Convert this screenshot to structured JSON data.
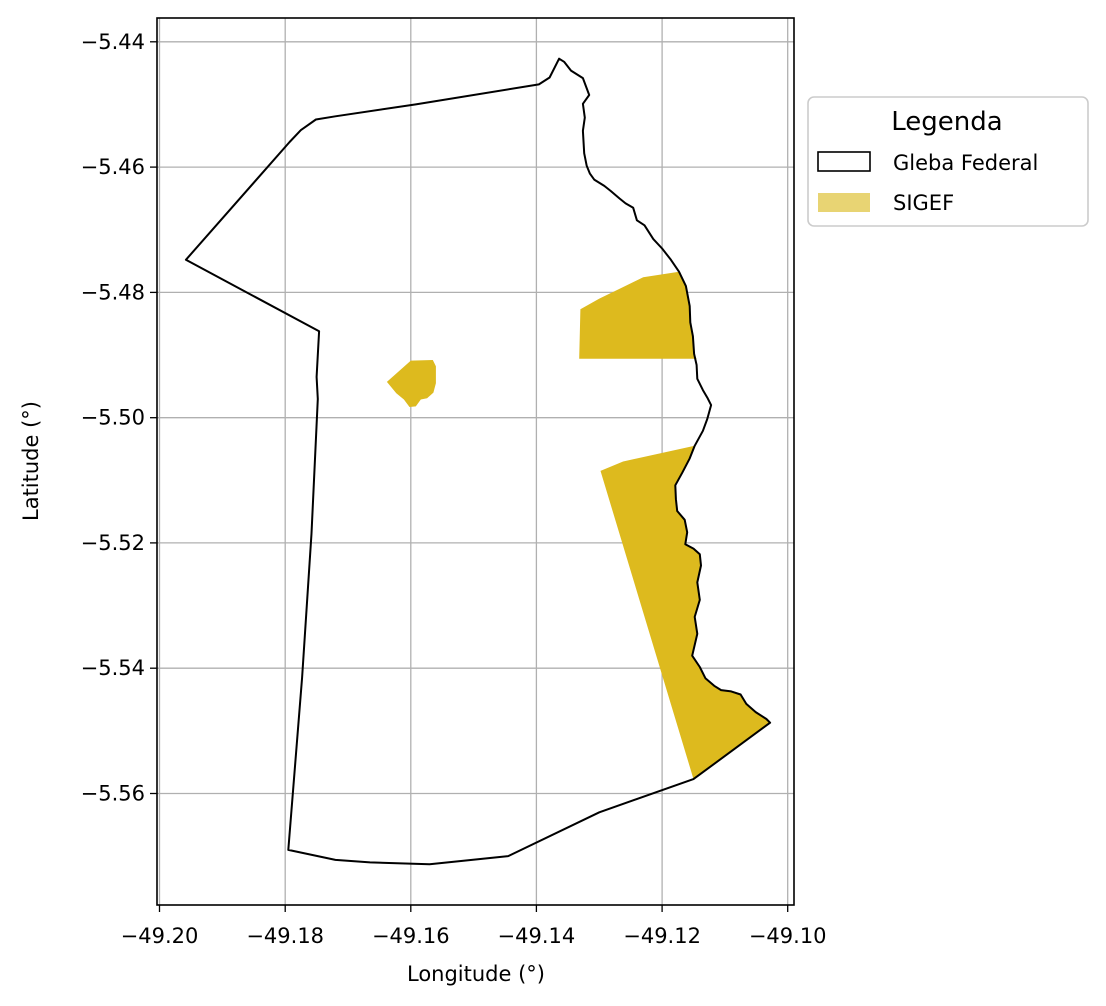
{
  "chart_data": {
    "type": "map",
    "xlabel": "Longitude (°)",
    "ylabel": "Latitude (°)",
    "xlim": [
      -49.2004,
      -49.099
    ],
    "ylim": [
      -5.5778,
      -5.4362
    ],
    "grid": true,
    "x_ticks": [
      -49.2,
      -49.18,
      -49.16,
      -49.14,
      -49.12,
      -49.1
    ],
    "x_tick_labels": [
      "−49.20",
      "−49.18",
      "−49.16",
      "−49.14",
      "−49.12",
      "−49.10"
    ],
    "y_ticks": [
      -5.44,
      -5.46,
      -5.48,
      -5.5,
      -5.52,
      -5.54,
      -5.56
    ],
    "y_tick_labels": [
      "−5.44",
      "−5.46",
      "−5.48",
      "−5.50",
      "−5.52",
      "−5.54",
      "−5.56"
    ],
    "legend": {
      "title": "Legenda",
      "placement": "outside-top-right",
      "entries": [
        {
          "label": "Gleba Federal",
          "style": "outline",
          "color": "#000000"
        },
        {
          "label": "SIGEF",
          "style": "fill",
          "color": "#E8D473"
        }
      ]
    },
    "colors": {
      "gleba_outline": "#000000",
      "sigef_fill": "#DDBA1E",
      "grid": "#B0B0B0"
    },
    "gleba_federal": [
      [
        -49.1958,
        -5.4748
      ],
      [
        -49.1793,
        -5.456
      ],
      [
        -49.1775,
        -5.4541
      ],
      [
        -49.1751,
        -5.4524
      ],
      [
        -49.172,
        -5.4519
      ],
      [
        -49.1592,
        -5.45
      ],
      [
        -49.1396,
        -5.4468
      ],
      [
        -49.1379,
        -5.4457
      ],
      [
        -49.1364,
        -5.4427
      ],
      [
        -49.1356,
        -5.4432
      ],
      [
        -49.1345,
        -5.4446
      ],
      [
        -49.1326,
        -5.4458
      ],
      [
        -49.1316,
        -5.4485
      ],
      [
        -49.1326,
        -5.4499
      ],
      [
        -49.1323,
        -5.4521
      ],
      [
        -49.1326,
        -5.4542
      ],
      [
        -49.1324,
        -5.4578
      ],
      [
        -49.132,
        -5.4598
      ],
      [
        -49.1315,
        -5.461
      ],
      [
        -49.1308,
        -5.462
      ],
      [
        -49.1292,
        -5.463
      ],
      [
        -49.1282,
        -5.4638
      ],
      [
        -49.1268,
        -5.465
      ],
      [
        -49.1258,
        -5.4658
      ],
      [
        -49.1246,
        -5.4665
      ],
      [
        -49.124,
        -5.4685
      ],
      [
        -49.1228,
        -5.4693
      ],
      [
        -49.1214,
        -5.4715
      ],
      [
        -49.12,
        -5.473
      ],
      [
        -49.1186,
        -5.4748
      ],
      [
        -49.1173,
        -5.4767
      ],
      [
        -49.1162,
        -5.479
      ],
      [
        -49.1156,
        -5.4822
      ],
      [
        -49.1155,
        -5.4848
      ],
      [
        -49.1151,
        -5.487
      ],
      [
        -49.1149,
        -5.4898
      ],
      [
        -49.1145,
        -5.4916
      ],
      [
        -49.1144,
        -5.4938
      ],
      [
        -49.1135,
        -5.4956
      ],
      [
        -49.1128,
        -5.4968
      ],
      [
        -49.1122,
        -5.498
      ],
      [
        -49.1128,
        -5.5002
      ],
      [
        -49.1135,
        -5.5021
      ],
      [
        -49.1148,
        -5.5045
      ],
      [
        -49.1156,
        -5.5065
      ],
      [
        -49.1168,
        -5.5088
      ],
      [
        -49.1179,
        -5.5108
      ],
      [
        -49.1178,
        -5.513
      ],
      [
        -49.1176,
        -5.5149
      ],
      [
        -49.1164,
        -5.5163
      ],
      [
        -49.116,
        -5.5183
      ],
      [
        -49.1163,
        -5.5202
      ],
      [
        -49.115,
        -5.5209
      ],
      [
        -49.114,
        -5.5218
      ],
      [
        -49.1138,
        -5.5236
      ],
      [
        -49.1144,
        -5.5263
      ],
      [
        -49.114,
        -5.5291
      ],
      [
        -49.1148,
        -5.5318
      ],
      [
        -49.1144,
        -5.5345
      ],
      [
        -49.1152,
        -5.538
      ],
      [
        -49.114,
        -5.5398
      ],
      [
        -49.1131,
        -5.5416
      ],
      [
        -49.1117,
        -5.5428
      ],
      [
        -49.1106,
        -5.5435
      ],
      [
        -49.109,
        -5.5437
      ],
      [
        -49.1075,
        -5.5442
      ],
      [
        -49.1066,
        -5.5457
      ],
      [
        -49.1051,
        -5.547
      ],
      [
        -49.1034,
        -5.5481
      ],
      [
        -49.1028,
        -5.5487
      ],
      [
        -49.115,
        -5.5577
      ],
      [
        -49.13,
        -5.563
      ],
      [
        -49.1445,
        -5.57
      ],
      [
        -49.157,
        -5.5713
      ],
      [
        -49.1665,
        -5.571
      ],
      [
        -49.172,
        -5.5706
      ],
      [
        -49.1795,
        -5.569
      ],
      [
        -49.1773,
        -5.5415
      ],
      [
        -49.1758,
        -5.5185
      ],
      [
        -49.1748,
        -5.497
      ],
      [
        -49.175,
        -5.4935
      ],
      [
        -49.1746,
        -5.4862
      ],
      [
        -49.1958,
        -5.4748
      ]
    ],
    "sigef_parcels": [
      {
        "name": "parcel-east-north",
        "coords": [
          [
            -49.133,
            -5.4827
          ],
          [
            -49.13,
            -5.481
          ],
          [
            -49.1265,
            -5.4793
          ],
          [
            -49.123,
            -5.4776
          ],
          [
            -49.1173,
            -5.4767
          ],
          [
            -49.1162,
            -5.479
          ],
          [
            -49.1156,
            -5.4822
          ],
          [
            -49.1155,
            -5.4848
          ],
          [
            -49.1151,
            -5.487
          ],
          [
            -49.1149,
            -5.4898
          ],
          [
            -49.1145,
            -5.4906
          ],
          [
            -49.1332,
            -5.4906
          ]
        ]
      },
      {
        "name": "parcel-center",
        "coords": [
          [
            -49.1638,
            -5.4943
          ],
          [
            -49.16,
            -5.4909
          ],
          [
            -49.1565,
            -5.4908
          ],
          [
            -49.156,
            -5.4918
          ],
          [
            -49.156,
            -5.4945
          ],
          [
            -49.1564,
            -5.496
          ],
          [
            -49.1574,
            -5.4969
          ],
          [
            -49.1584,
            -5.4971
          ],
          [
            -49.1592,
            -5.4982
          ],
          [
            -49.1602,
            -5.4983
          ],
          [
            -49.1611,
            -5.4971
          ],
          [
            -49.1623,
            -5.4961
          ]
        ]
      },
      {
        "name": "parcel-east-south",
        "coords": [
          [
            -49.1298,
            -5.5085
          ],
          [
            -49.1262,
            -5.507
          ],
          [
            -49.1148,
            -5.5045
          ],
          [
            -49.1156,
            -5.5065
          ],
          [
            -49.1168,
            -5.5088
          ],
          [
            -49.1179,
            -5.5108
          ],
          [
            -49.1178,
            -5.513
          ],
          [
            -49.1176,
            -5.5149
          ],
          [
            -49.1164,
            -5.5163
          ],
          [
            -49.116,
            -5.5183
          ],
          [
            -49.1163,
            -5.5202
          ],
          [
            -49.115,
            -5.5209
          ],
          [
            -49.114,
            -5.5218
          ],
          [
            -49.1138,
            -5.5236
          ],
          [
            -49.1144,
            -5.5263
          ],
          [
            -49.114,
            -5.5291
          ],
          [
            -49.1148,
            -5.5318
          ],
          [
            -49.1144,
            -5.5345
          ],
          [
            -49.1152,
            -5.538
          ],
          [
            -49.114,
            -5.5398
          ],
          [
            -49.1131,
            -5.5416
          ],
          [
            -49.1117,
            -5.5428
          ],
          [
            -49.1106,
            -5.5435
          ],
          [
            -49.109,
            -5.5437
          ],
          [
            -49.1075,
            -5.5442
          ],
          [
            -49.1066,
            -5.5457
          ],
          [
            -49.1051,
            -5.547
          ],
          [
            -49.1034,
            -5.5481
          ],
          [
            -49.1028,
            -5.5487
          ],
          [
            -49.115,
            -5.5577
          ]
        ]
      }
    ]
  }
}
